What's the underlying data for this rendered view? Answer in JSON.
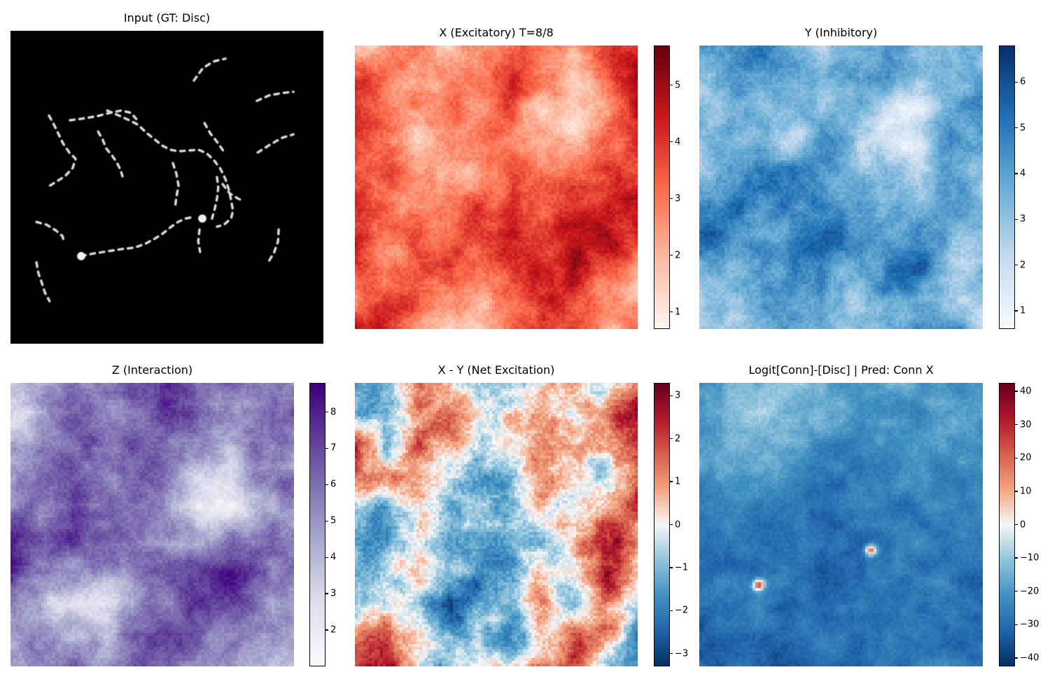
{
  "figure": {
    "background": "#ffffff"
  },
  "chart_data": [
    {
      "id": "input",
      "type": "image",
      "title": "Input (GT: Disc)",
      "background": "#000000",
      "line_color": "#d9d9d9",
      "line_style": "dashed",
      "curves": [
        [
          [
            0.586,
            0.159
          ],
          [
            0.615,
            0.119
          ],
          [
            0.649,
            0.098
          ],
          [
            0.687,
            0.089
          ]
        ],
        [
          [
            0.787,
            0.224
          ],
          [
            0.828,
            0.206
          ],
          [
            0.868,
            0.199
          ],
          [
            0.904,
            0.195
          ]
        ],
        [
          [
            0.79,
            0.389
          ],
          [
            0.828,
            0.365
          ],
          [
            0.868,
            0.342
          ],
          [
            0.904,
            0.331
          ]
        ],
        [
          [
            0.62,
            0.295
          ],
          [
            0.638,
            0.327
          ],
          [
            0.664,
            0.36
          ],
          [
            0.687,
            0.394
          ]
        ],
        [
          [
            0.123,
            0.271
          ],
          [
            0.141,
            0.304
          ],
          [
            0.154,
            0.331
          ],
          [
            0.168,
            0.36
          ],
          [
            0.188,
            0.389
          ],
          [
            0.208,
            0.409
          ],
          [
            0.199,
            0.438
          ],
          [
            0.174,
            0.465
          ],
          [
            0.145,
            0.483
          ],
          [
            0.119,
            0.499
          ]
        ],
        [
          [
            0.19,
            0.286
          ],
          [
            0.235,
            0.28
          ],
          [
            0.28,
            0.272
          ],
          [
            0.318,
            0.262
          ],
          [
            0.353,
            0.255
          ],
          [
            0.385,
            0.262
          ],
          [
            0.402,
            0.282
          ]
        ],
        [
          [
            0.28,
            0.322
          ],
          [
            0.295,
            0.349
          ],
          [
            0.306,
            0.376
          ],
          [
            0.324,
            0.398
          ],
          [
            0.34,
            0.421
          ],
          [
            0.351,
            0.443
          ],
          [
            0.358,
            0.465
          ]
        ],
        [
          [
            0.309,
            0.255
          ],
          [
            0.347,
            0.271
          ],
          [
            0.38,
            0.286
          ],
          [
            0.407,
            0.3
          ],
          [
            0.436,
            0.327
          ],
          [
            0.463,
            0.349
          ],
          [
            0.485,
            0.367
          ],
          [
            0.51,
            0.38
          ],
          [
            0.537,
            0.385
          ],
          [
            0.566,
            0.383
          ],
          [
            0.6,
            0.38
          ],
          [
            0.626,
            0.391
          ],
          [
            0.649,
            0.412
          ],
          [
            0.671,
            0.441
          ],
          [
            0.687,
            0.474
          ],
          [
            0.698,
            0.508
          ],
          [
            0.705,
            0.541
          ],
          [
            0.711,
            0.575
          ],
          [
            0.705,
            0.6
          ],
          [
            0.682,
            0.62
          ],
          [
            0.66,
            0.626
          ]
        ],
        [
          [
            0.519,
            0.423
          ],
          [
            0.53,
            0.456
          ],
          [
            0.537,
            0.494
          ],
          [
            0.53,
            0.532
          ],
          [
            0.526,
            0.566
          ]
        ],
        [
          [
            0.66,
            0.468
          ],
          [
            0.664,
            0.501
          ],
          [
            0.66,
            0.535
          ],
          [
            0.653,
            0.568
          ],
          [
            0.644,
            0.6
          ]
        ],
        [
          [
            0.678,
            0.49
          ],
          [
            0.7,
            0.519
          ],
          [
            0.725,
            0.535
          ],
          [
            0.743,
            0.544
          ]
        ],
        [
          [
            0.083,
            0.611
          ],
          [
            0.116,
            0.62
          ],
          [
            0.145,
            0.638
          ],
          [
            0.166,
            0.656
          ],
          [
            0.172,
            0.678
          ]
        ],
        [
          [
            0.226,
            0.72
          ],
          [
            0.264,
            0.712
          ],
          [
            0.309,
            0.705
          ],
          [
            0.353,
            0.698
          ],
          [
            0.396,
            0.693
          ],
          [
            0.432,
            0.68
          ],
          [
            0.465,
            0.662
          ],
          [
            0.488,
            0.647
          ],
          [
            0.51,
            0.629
          ],
          [
            0.535,
            0.611
          ],
          [
            0.559,
            0.6
          ],
          [
            0.586,
            0.595
          ]
        ],
        [
          [
            0.604,
            0.635
          ],
          [
            0.6,
            0.673
          ],
          [
            0.606,
            0.707
          ]
        ],
        [
          [
            0.857,
            0.635
          ],
          [
            0.855,
            0.673
          ],
          [
            0.843,
            0.707
          ],
          [
            0.826,
            0.736
          ]
        ],
        [
          [
            0.083,
            0.74
          ],
          [
            0.089,
            0.774
          ],
          [
            0.101,
            0.808
          ],
          [
            0.11,
            0.837
          ],
          [
            0.125,
            0.864
          ]
        ]
      ],
      "discs": [
        {
          "x": 0.613,
          "y": 0.6,
          "r": 0.013
        },
        {
          "x": 0.226,
          "y": 0.72,
          "r": 0.013
        }
      ]
    },
    {
      "id": "x_excitatory",
      "type": "heatmap",
      "title": "X (Excitatory) T=8/8",
      "colormap": "Reds",
      "vmin": 0.7,
      "vmax": 5.7,
      "tick_values": [
        1,
        2,
        3,
        4,
        5
      ],
      "tick_labels": [
        "1",
        "2",
        "3",
        "4",
        "5"
      ],
      "values": [
        [
          1.5,
          2.8,
          3.2,
          1.8,
          3.0,
          3.8,
          3.2,
          2.5,
          3.5,
          4.5
        ],
        [
          3.8,
          3.0,
          2.5,
          2.8,
          3.2,
          4.5,
          3.0,
          2.0,
          3.0,
          5.4
        ],
        [
          4.2,
          3.3,
          2.8,
          3.0,
          2.5,
          3.5,
          1.5,
          1.2,
          2.5,
          4.8
        ],
        [
          3.5,
          2.8,
          1.5,
          2.2,
          2.8,
          3.0,
          2.2,
          1.8,
          3.2,
          3.8
        ],
        [
          3.8,
          4.2,
          2.5,
          2.0,
          2.5,
          3.5,
          2.8,
          3.2,
          3.8,
          3.2
        ],
        [
          4.0,
          3.5,
          3.0,
          2.8,
          3.5,
          4.2,
          3.5,
          4.0,
          4.2,
          4.5
        ],
        [
          4.5,
          3.2,
          3.5,
          3.2,
          3.8,
          4.5,
          3.8,
          4.8,
          5.2,
          4.2
        ],
        [
          3.5,
          2.5,
          3.0,
          3.8,
          3.2,
          3.8,
          4.2,
          4.8,
          4.0,
          3.0
        ],
        [
          3.0,
          3.8,
          3.2,
          2.8,
          2.0,
          3.5,
          4.5,
          4.0,
          2.5,
          2.2
        ],
        [
          4.8,
          4.2,
          2.8,
          1.2,
          1.5,
          3.0,
          3.8,
          3.2,
          2.0,
          2.8
        ]
      ]
    },
    {
      "id": "y_inhibitory",
      "type": "heatmap",
      "title": "Y (Inhibitory)",
      "colormap": "Blues",
      "vmin": 0.6,
      "vmax": 6.8,
      "tick_values": [
        1,
        2,
        3,
        4,
        5,
        6
      ],
      "tick_labels": [
        "1",
        "2",
        "3",
        "4",
        "5",
        "6"
      ],
      "values": [
        [
          3.5,
          4.8,
          5.0,
          3.2,
          2.8,
          3.0,
          4.2,
          3.5,
          3.0,
          3.2
        ],
        [
          3.0,
          4.5,
          4.2,
          3.8,
          3.0,
          4.8,
          4.0,
          2.5,
          3.5,
          4.5
        ],
        [
          2.5,
          3.8,
          3.5,
          3.2,
          3.5,
          3.0,
          1.8,
          1.5,
          3.8,
          4.2
        ],
        [
          3.2,
          3.0,
          2.8,
          2.5,
          3.8,
          3.2,
          1.2,
          2.0,
          4.5,
          3.5
        ],
        [
          2.8,
          4.2,
          4.8,
          4.5,
          4.0,
          3.5,
          2.5,
          3.0,
          3.8,
          3.0
        ],
        [
          4.5,
          5.2,
          4.8,
          5.0,
          4.5,
          4.2,
          3.5,
          3.2,
          4.0,
          3.5
        ],
        [
          6.2,
          4.8,
          4.2,
          4.5,
          5.8,
          4.0,
          4.2,
          4.5,
          3.5,
          3.0
        ],
        [
          4.0,
          3.5,
          4.0,
          5.0,
          4.5,
          3.8,
          5.2,
          5.5,
          3.2,
          3.5
        ],
        [
          3.0,
          3.2,
          4.5,
          4.8,
          3.5,
          3.2,
          4.2,
          4.0,
          3.0,
          2.8
        ],
        [
          2.8,
          2.5,
          3.5,
          4.0,
          3.8,
          3.0,
          3.5,
          4.5,
          3.8,
          3.2
        ]
      ]
    },
    {
      "id": "z_interaction",
      "type": "heatmap",
      "title": "Z (Interaction)",
      "colormap": "Purples",
      "vmin": 1.0,
      "vmax": 8.8,
      "tick_values": [
        2,
        3,
        4,
        5,
        6,
        7,
        8
      ],
      "tick_labels": [
        "2",
        "3",
        "4",
        "5",
        "6",
        "7",
        "8"
      ],
      "values": [
        [
          4.0,
          5.0,
          5.5,
          6.0,
          6.5,
          7.5,
          6.5,
          6.0,
          5.5,
          6.0
        ],
        [
          2.5,
          4.5,
          6.0,
          5.5,
          6.0,
          8.0,
          6.5,
          5.5,
          6.0,
          6.5
        ],
        [
          4.5,
          6.0,
          6.5,
          6.0,
          6.5,
          6.0,
          5.0,
          4.5,
          6.5,
          5.5
        ],
        [
          5.5,
          6.5,
          6.0,
          5.5,
          7.0,
          5.5,
          3.5,
          3.0,
          5.5,
          6.0
        ],
        [
          6.0,
          5.5,
          6.5,
          6.0,
          6.5,
          5.0,
          2.5,
          2.0,
          4.5,
          5.5
        ],
        [
          8.5,
          6.5,
          7.0,
          6.5,
          6.0,
          5.5,
          4.5,
          5.5,
          6.5,
          6.0
        ],
        [
          7.0,
          5.5,
          5.0,
          4.5,
          5.5,
          6.5,
          7.5,
          8.0,
          6.5,
          5.5
        ],
        [
          5.0,
          4.0,
          3.0,
          2.5,
          4.5,
          6.0,
          7.0,
          7.5,
          6.0,
          5.0
        ],
        [
          5.5,
          5.0,
          4.0,
          3.5,
          6.5,
          7.5,
          6.0,
          5.5,
          5.0,
          4.5
        ],
        [
          5.0,
          5.5,
          6.0,
          5.0,
          6.0,
          6.5,
          5.5,
          5.0,
          4.5,
          4.0
        ]
      ]
    },
    {
      "id": "net_excitation",
      "type": "heatmap",
      "title": "X - Y (Net Excitation)",
      "colormap": "RdBu_r",
      "vmin": -3.3,
      "vmax": 3.3,
      "tick_values": [
        -3,
        -2,
        -1,
        0,
        1,
        2,
        3
      ],
      "tick_labels": [
        "−3",
        "−2",
        "−1",
        "0",
        "1",
        "2",
        "3"
      ],
      "values": [
        [
          -1.2,
          -0.8,
          1.8,
          0.3,
          -0.8,
          -1.0,
          0.8,
          1.2,
          -0.3,
          1.5
        ],
        [
          -1.5,
          -1.2,
          1.2,
          1.5,
          -0.5,
          0.8,
          1.5,
          -0.8,
          0.8,
          2.8
        ],
        [
          2.3,
          -1.0,
          1.5,
          0.3,
          -1.0,
          0.5,
          1.5,
          0.8,
          0.3,
          2.0
        ],
        [
          1.5,
          0.8,
          1.0,
          -0.5,
          -1.2,
          -0.8,
          1.0,
          0.3,
          -0.8,
          1.2
        ],
        [
          -0.8,
          -1.2,
          0.3,
          -0.8,
          -1.0,
          -1.2,
          0.5,
          -0.5,
          0.8,
          1.5
        ],
        [
          -1.5,
          -1.0,
          0.8,
          -1.2,
          -1.5,
          -1.0,
          -0.8,
          0.8,
          2.5,
          1.8
        ],
        [
          -1.2,
          -0.5,
          1.0,
          -0.8,
          -1.5,
          -1.2,
          0.5,
          -0.5,
          2.8,
          0.8
        ],
        [
          -0.8,
          0.5,
          -0.5,
          -2.5,
          -1.8,
          -0.8,
          0.8,
          -0.8,
          1.5,
          -0.5
        ],
        [
          0.8,
          1.8,
          0.3,
          -1.5,
          -1.2,
          -1.5,
          0.5,
          1.8,
          0.8,
          -1.2
        ],
        [
          1.8,
          2.2,
          -0.5,
          -0.8,
          0.5,
          -0.8,
          1.0,
          1.2,
          -0.8,
          -2.0
        ]
      ]
    },
    {
      "id": "logit",
      "type": "heatmap",
      "title": "Logit[Conn]-[Disc] | Pred: Conn X",
      "colormap": "RdBu_r",
      "vmin": -42.5,
      "vmax": 42.5,
      "tick_values": [
        -40,
        -30,
        -20,
        -10,
        0,
        10,
        20,
        30,
        40
      ],
      "tick_labels": [
        "−40",
        "−30",
        "−20",
        "−10",
        "0",
        "10",
        "20",
        "30",
        "40"
      ],
      "hot_spots": [
        {
          "x": 0.207,
          "y": 0.714,
          "amp": 52
        },
        {
          "x": 0.605,
          "y": 0.59,
          "amp": 52
        }
      ],
      "values": [
        [
          -20,
          -17,
          -15,
          -14,
          -16,
          -18,
          -17,
          -19,
          -22,
          -24
        ],
        [
          -18,
          -14,
          -12,
          -13,
          -16,
          -19,
          -21,
          -22,
          -19,
          -17
        ],
        [
          -16,
          -13,
          -15,
          -19,
          -23,
          -25,
          -25,
          -23,
          -21,
          -20
        ],
        [
          -22,
          -19,
          -22,
          -26,
          -28,
          -28,
          -26,
          -25,
          -24,
          -23
        ],
        [
          -27,
          -25,
          -27,
          -30,
          -31,
          -29,
          -28,
          -27,
          -25,
          -24
        ],
        [
          -30,
          -28,
          -29,
          -31,
          -32,
          -30,
          -28,
          -26,
          -26,
          -26
        ],
        [
          -29,
          -27,
          -28,
          -30,
          -31,
          -30,
          -29,
          -28,
          -27,
          -27
        ],
        [
          -30,
          -28,
          -29,
          -31,
          -30,
          -29,
          -28,
          -27,
          -28,
          -29
        ],
        [
          -31,
          -30,
          -30,
          -30,
          -29,
          -28,
          -27,
          -26,
          -28,
          -30
        ],
        [
          -32,
          -31,
          -31,
          -30,
          -29,
          -28,
          -27,
          -27,
          -29,
          -31
        ]
      ]
    }
  ]
}
